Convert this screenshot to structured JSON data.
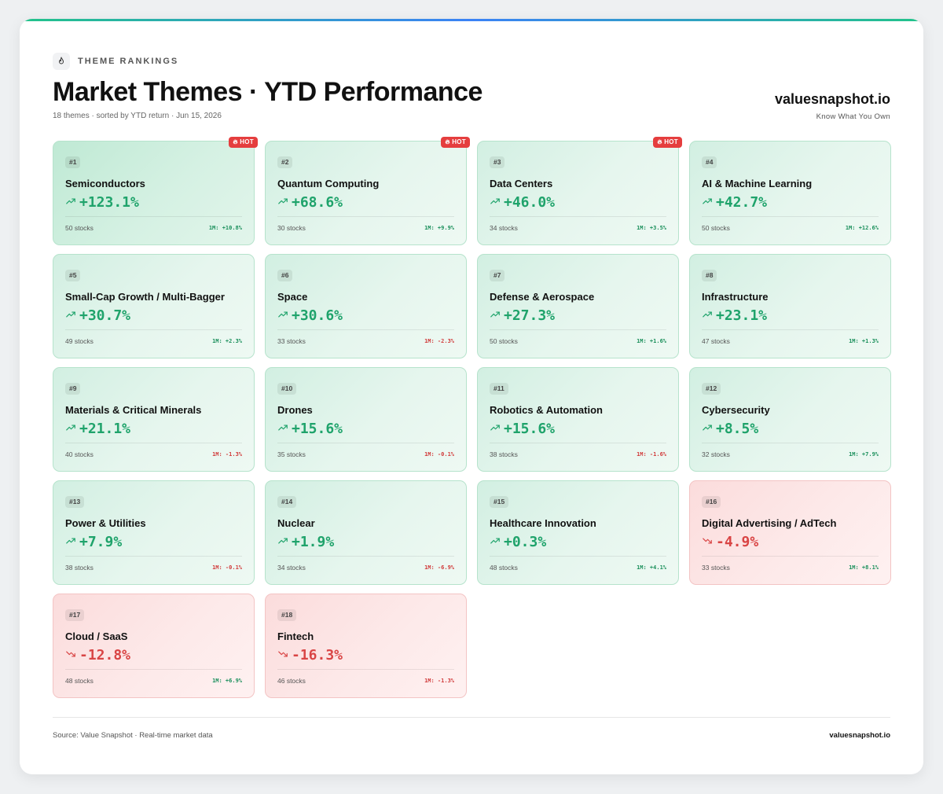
{
  "header": {
    "eyebrow": "THEME RANKINGS",
    "eyebrow_icon": "flame-icon",
    "title": "Market Themes · YTD Performance",
    "subtitle": "18 themes · sorted by YTD return · Jun 15, 2026",
    "brand": "valuesnapshot.io",
    "tagline": "Know What You Own"
  },
  "colors": {
    "positive": "#1fa36b",
    "negative": "#d94545",
    "hot_badge": "#e53e3e",
    "accent_bar": "#22c38a"
  },
  "hot_label": "HOT",
  "themes": [
    {
      "rank": "#1",
      "name": "Semiconductors",
      "ytd": "+123.1%",
      "stocks": "50 stocks",
      "m1": "1M: +10.8%",
      "dir": "up",
      "m1_dir": "up",
      "hot": true
    },
    {
      "rank": "#2",
      "name": "Quantum Computing",
      "ytd": "+68.6%",
      "stocks": "30 stocks",
      "m1": "1M: +9.9%",
      "dir": "up",
      "m1_dir": "up",
      "hot": true
    },
    {
      "rank": "#3",
      "name": "Data Centers",
      "ytd": "+46.0%",
      "stocks": "34 stocks",
      "m1": "1M: +3.5%",
      "dir": "up",
      "m1_dir": "up",
      "hot": true
    },
    {
      "rank": "#4",
      "name": "AI & Machine Learning",
      "ytd": "+42.7%",
      "stocks": "50 stocks",
      "m1": "1M: +12.6%",
      "dir": "up",
      "m1_dir": "up",
      "hot": false
    },
    {
      "rank": "#5",
      "name": "Small-Cap Growth / Multi-Bagger",
      "ytd": "+30.7%",
      "stocks": "49 stocks",
      "m1": "1M: +2.3%",
      "dir": "up",
      "m1_dir": "up",
      "hot": false
    },
    {
      "rank": "#6",
      "name": "Space",
      "ytd": "+30.6%",
      "stocks": "33 stocks",
      "m1": "1M: -2.3%",
      "dir": "up",
      "m1_dir": "down",
      "hot": false
    },
    {
      "rank": "#7",
      "name": "Defense & Aerospace",
      "ytd": "+27.3%",
      "stocks": "50 stocks",
      "m1": "1M: +1.6%",
      "dir": "up",
      "m1_dir": "up",
      "hot": false
    },
    {
      "rank": "#8",
      "name": "Infrastructure",
      "ytd": "+23.1%",
      "stocks": "47 stocks",
      "m1": "1M: +1.3%",
      "dir": "up",
      "m1_dir": "up",
      "hot": false
    },
    {
      "rank": "#9",
      "name": "Materials & Critical Minerals",
      "ytd": "+21.1%",
      "stocks": "40 stocks",
      "m1": "1M: -1.3%",
      "dir": "up",
      "m1_dir": "down",
      "hot": false
    },
    {
      "rank": "#10",
      "name": "Drones",
      "ytd": "+15.6%",
      "stocks": "35 stocks",
      "m1": "1M: -0.1%",
      "dir": "up",
      "m1_dir": "down",
      "hot": false
    },
    {
      "rank": "#11",
      "name": "Robotics & Automation",
      "ytd": "+15.6%",
      "stocks": "38 stocks",
      "m1": "1M: -1.6%",
      "dir": "up",
      "m1_dir": "down",
      "hot": false
    },
    {
      "rank": "#12",
      "name": "Cybersecurity",
      "ytd": "+8.5%",
      "stocks": "32 stocks",
      "m1": "1M: +7.9%",
      "dir": "up",
      "m1_dir": "up",
      "hot": false
    },
    {
      "rank": "#13",
      "name": "Power & Utilities",
      "ytd": "+7.9%",
      "stocks": "38 stocks",
      "m1": "1M: -0.1%",
      "dir": "up",
      "m1_dir": "down",
      "hot": false
    },
    {
      "rank": "#14",
      "name": "Nuclear",
      "ytd": "+1.9%",
      "stocks": "34 stocks",
      "m1": "1M: -6.9%",
      "dir": "up",
      "m1_dir": "down",
      "hot": false
    },
    {
      "rank": "#15",
      "name": "Healthcare Innovation",
      "ytd": "+0.3%",
      "stocks": "48 stocks",
      "m1": "1M: +4.1%",
      "dir": "up",
      "m1_dir": "up",
      "hot": false
    },
    {
      "rank": "#16",
      "name": "Digital Advertising / AdTech",
      "ytd": "-4.9%",
      "stocks": "33 stocks",
      "m1": "1M: +8.1%",
      "dir": "down",
      "m1_dir": "up",
      "hot": false
    },
    {
      "rank": "#17",
      "name": "Cloud / SaaS",
      "ytd": "-12.8%",
      "stocks": "48 stocks",
      "m1": "1M: +6.9%",
      "dir": "down",
      "m1_dir": "up",
      "hot": false
    },
    {
      "rank": "#18",
      "name": "Fintech",
      "ytd": "-16.3%",
      "stocks": "46 stocks",
      "m1": "1M: -1.3%",
      "dir": "down",
      "m1_dir": "down",
      "hot": false
    }
  ],
  "footer": {
    "source": "Source: Value Snapshot · Real-time market data",
    "brand": "valuesnapshot.io"
  }
}
